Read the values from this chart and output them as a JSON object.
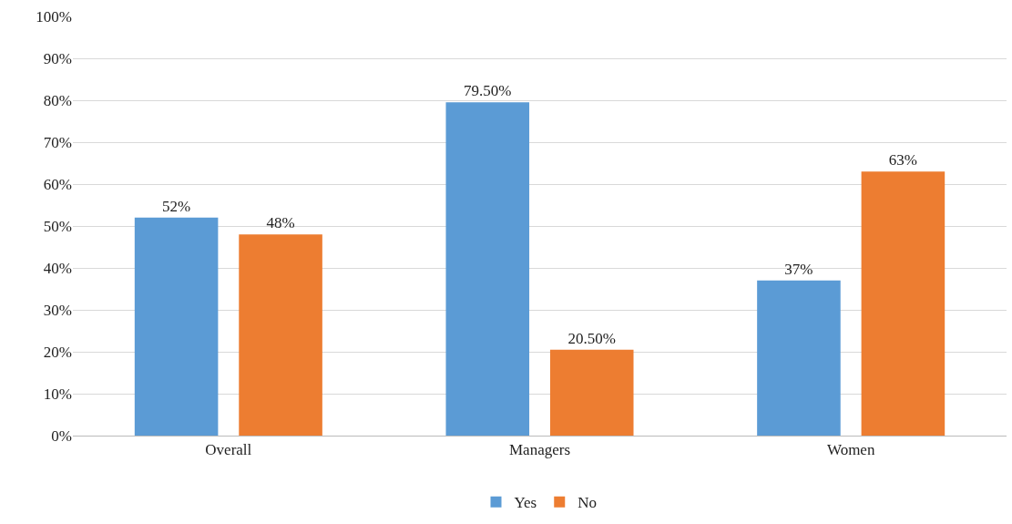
{
  "chart_data": {
    "type": "bar",
    "categories": [
      "Overall",
      "Managers",
      "Women"
    ],
    "series": [
      {
        "name": "Yes",
        "color": "#5b9bd5",
        "values": [
          52,
          79.5,
          37
        ],
        "value_labels": [
          "52%",
          "79.50%",
          "37%"
        ]
      },
      {
        "name": "No",
        "color": "#ed7d31",
        "values": [
          48,
          20.5,
          63
        ],
        "value_labels": [
          "48%",
          "20.50%",
          "63%"
        ]
      }
    ],
    "ylim": [
      0,
      100
    ],
    "yticks": [
      {
        "value": 0,
        "label": "0%"
      },
      {
        "value": 10,
        "label": "10%"
      },
      {
        "value": 20,
        "label": "20%"
      },
      {
        "value": 30,
        "label": "30%"
      },
      {
        "value": 40,
        "label": "40%"
      },
      {
        "value": 50,
        "label": "50%"
      },
      {
        "value": 60,
        "label": "60%"
      },
      {
        "value": 70,
        "label": "70%"
      },
      {
        "value": 80,
        "label": "80%"
      },
      {
        "value": 90,
        "label": "90%"
      },
      {
        "value": 100,
        "label": "100%"
      }
    ],
    "grid": "y",
    "legend": "bottom"
  }
}
